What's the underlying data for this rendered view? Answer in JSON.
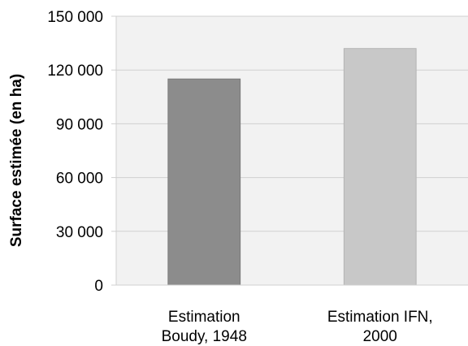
{
  "chart_data": {
    "type": "bar",
    "categories": [
      [
        "Estimation",
        "Boudy, 1948"
      ],
      [
        "Estimation IFN,",
        "2000"
      ]
    ],
    "values": [
      115000,
      132000
    ],
    "bar_colors": [
      "#8c8c8c",
      "#c8c8c8"
    ],
    "bar_border_colors": [
      "#7a7a7a",
      "#b4b4b4"
    ],
    "title": "",
    "xlabel": "",
    "ylabel": "Surface estimée (en ha)",
    "ylim": [
      0,
      150000
    ],
    "yticks": [
      0,
      30000,
      60000,
      90000,
      120000,
      150000
    ],
    "ytick_labels": [
      "0",
      "30 000",
      "60 000",
      "90 000",
      "120 000",
      "150 000"
    ],
    "grid": true,
    "legend": "none",
    "plot_background": "#f2f2f2",
    "grid_color": "#d0d0d0"
  }
}
